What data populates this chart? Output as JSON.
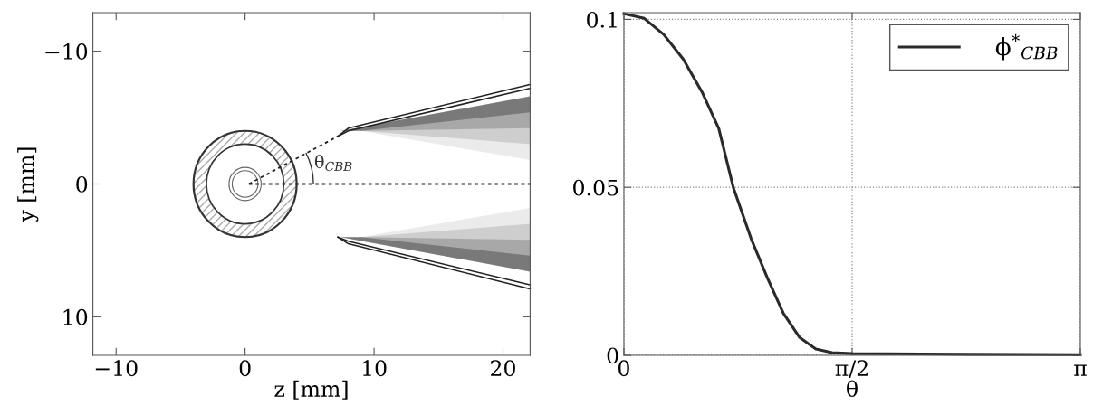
{
  "chart_data": [
    {
      "type": "line",
      "xlabel": "z [mm]",
      "ylabel": "y [mm]",
      "series": [
        {
          "color": "#222222",
          "line_style": "solid",
          "x": [
            7.2,
            8.0,
            22.1
          ],
          "values": [
            -3.6,
            -4.2,
            -7.5
          ]
        },
        {
          "color": "#222222",
          "line_style": "solid",
          "x": [
            7.2,
            8.0,
            22.1
          ],
          "values": [
            -3.6,
            -4.0,
            -7.2
          ]
        },
        {
          "color": "#222222",
          "line_style": "solid",
          "x": [
            7.2,
            8.0,
            22.1
          ],
          "values": [
            4.0,
            4.5,
            7.9
          ]
        },
        {
          "color": "#222222",
          "line_style": "solid",
          "x": [
            7.2,
            8.0,
            22.1
          ],
          "values": [
            4.0,
            4.3,
            7.6
          ]
        },
        {
          "color": "#222222",
          "line_style": "dotted",
          "x": [
            0.3,
            22.1
          ],
          "values": [
            0,
            0
          ]
        },
        {
          "color": "#222222",
          "line_style": "dotted",
          "x": [
            0.3,
            7.2
          ],
          "values": [
            0,
            -3.6
          ]
        }
      ],
      "xlim": [
        -11.8,
        22.1
      ],
      "ylim": [
        12.9,
        -12.9
      ],
      "xticks": [
        {
          "value": -10,
          "label": "−10"
        },
        0,
        10,
        20
      ],
      "yticks": [
        {
          "value": -10,
          "label": "−10"
        },
        0,
        10
      ],
      "marker": "none",
      "annotations": [
        "θ$_{CBB}$"
      ]
    },
    {
      "type": "line",
      "xlabel": "θ",
      "x": [
        0,
        0.14,
        0.274,
        0.408,
        0.541,
        0.653,
        0.753,
        0.876,
        0.987,
        1.098,
        1.21,
        1.321,
        1.433,
        1.571,
        2.368,
        3.1416
      ],
      "series": [
        {
          "name": "ϕ$^{*}$$_{CBB}$",
          "color": "#2a2a2a",
          "values": [
            0.1017,
            0.1003,
            0.0955,
            0.0882,
            0.0781,
            0.0675,
            0.05,
            0.0347,
            0.0231,
            0.0125,
            0.0053,
            0.0019,
            0.0008,
            0.0005,
            0.0003,
            0.0002
          ]
        }
      ],
      "xlim": [
        0,
        3.1416
      ],
      "ylim": [
        0,
        0.102
      ],
      "xticks": [
        0,
        {
          "value": 1.5708,
          "label": "π/2"
        },
        {
          "value": 3.1416,
          "label": "π"
        }
      ],
      "yticks": [
        0,
        0.05,
        0.1
      ],
      "grid": true,
      "legend": "top right",
      "marker": "none",
      "line_style": "solid"
    }
  ]
}
